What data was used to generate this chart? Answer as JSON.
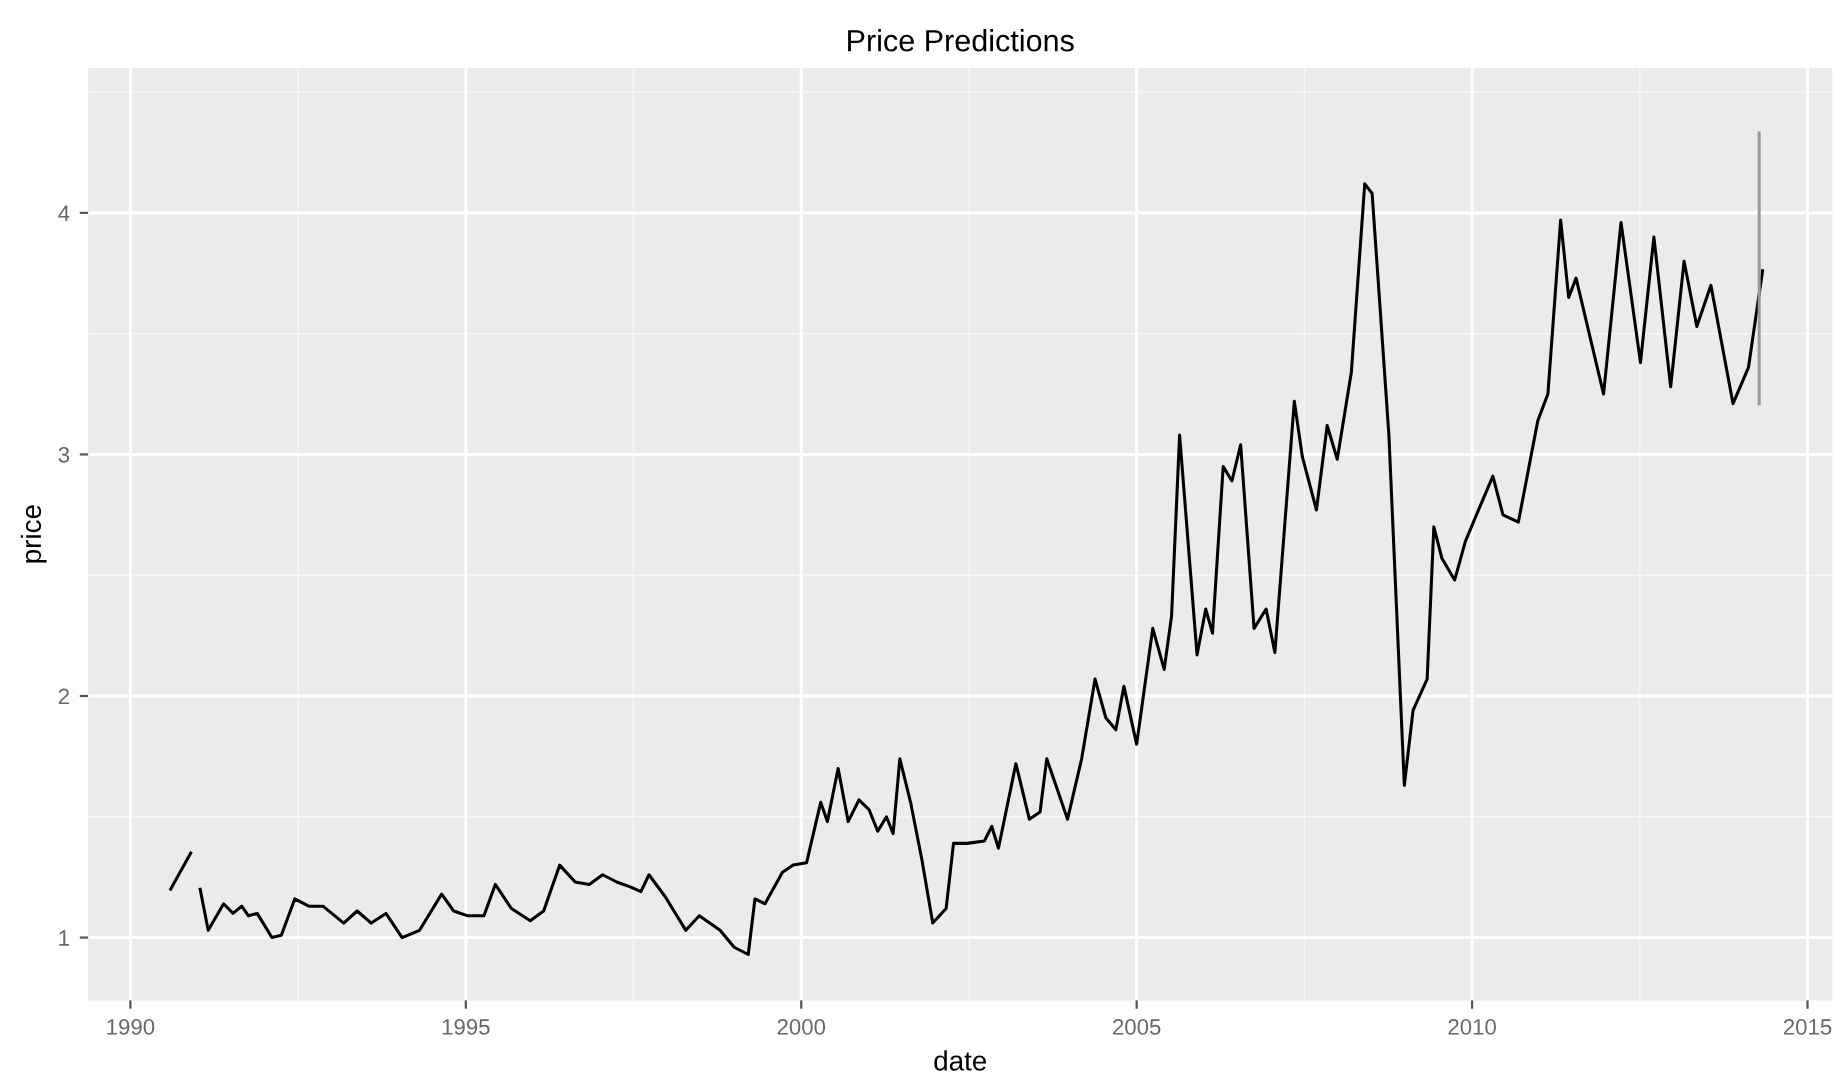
{
  "chart_data": {
    "type": "line",
    "title": "Price Predictions",
    "xlabel": "date",
    "ylabel": "price",
    "xlim": [
      1989.37,
      2015.37
    ],
    "ylim": [
      0.74,
      4.6
    ],
    "xticks": [
      1990,
      1995,
      2000,
      2005,
      2010,
      2015
    ],
    "yticks": [
      1,
      2,
      3,
      4
    ],
    "grid": true,
    "series": [
      {
        "color": "#000000",
        "x": [
          1990.6,
          1990.8,
          1990.9,
          1991.0,
          1991.04,
          1991.16,
          1991.39,
          1991.53,
          1991.66,
          1991.76,
          1991.89,
          1992.11,
          1992.25,
          1992.45,
          1992.66,
          1992.87,
          1993.18,
          1993.38,
          1993.59,
          1993.81,
          1994.05,
          1994.31,
          1994.64,
          1994.82,
          1995.03,
          1995.27,
          1995.44,
          1995.68,
          1995.96,
          1996.16,
          1996.4,
          1996.63,
          1996.84,
          1997.04,
          1997.25,
          1997.45,
          1997.61,
          1997.73,
          1997.97,
          1998.28,
          1998.48,
          1998.79,
          1999.0,
          1999.21,
          1999.31,
          1999.46,
          1999.72,
          1999.88,
          2000.08,
          2000.29,
          2000.39,
          2000.55,
          2000.7,
          2000.86,
          2001.01,
          2001.14,
          2001.27,
          2001.37,
          2001.47,
          2001.63,
          2001.8,
          2001.96,
          2002.16,
          2002.27,
          2002.47,
          2002.73,
          2002.84,
          2002.94,
          2003.2,
          2003.4,
          2003.56,
          2003.66,
          2003.97,
          2004.18,
          2004.38,
          2004.54,
          2004.69,
          2004.81,
          2005.0,
          2005.24,
          2005.41,
          2005.52,
          2005.64,
          2005.72,
          2005.9,
          2006.03,
          2006.13,
          2006.29,
          2006.42,
          2006.55,
          2006.75,
          2006.93,
          2007.06,
          2007.35,
          2007.47,
          2007.68,
          2007.84,
          2007.99,
          2008.2,
          2008.4,
          2008.51,
          2008.61,
          2008.76,
          2008.99,
          2009.12,
          2009.33,
          2009.43,
          2009.55,
          2009.74,
          2009.9,
          2010.05,
          2010.31,
          2010.46,
          2010.69,
          2010.98,
          2011.13,
          2011.32,
          2011.44,
          2011.55,
          2011.96,
          2012.22,
          2012.51,
          2012.71,
          2012.96,
          2013.16,
          2013.35,
          2013.56,
          2013.89,
          2014.12,
          2014.33
        ],
        "values": [
          1.2,
          1.3,
          1.35,
          null,
          1.2,
          1.03,
          1.14,
          1.1,
          1.13,
          1.09,
          1.1,
          1.0,
          1.01,
          1.16,
          1.13,
          1.13,
          1.06,
          1.11,
          1.06,
          1.1,
          1.0,
          1.03,
          1.18,
          1.11,
          1.09,
          1.09,
          1.22,
          1.12,
          1.07,
          1.11,
          1.3,
          1.23,
          1.22,
          1.26,
          1.23,
          1.21,
          1.19,
          1.26,
          1.17,
          1.03,
          1.09,
          1.03,
          0.96,
          0.93,
          1.16,
          1.14,
          1.27,
          1.3,
          1.31,
          1.56,
          1.48,
          1.7,
          1.48,
          1.57,
          1.53,
          1.44,
          1.5,
          1.43,
          1.74,
          1.56,
          1.32,
          1.06,
          1.12,
          1.39,
          1.39,
          1.4,
          1.46,
          1.37,
          1.72,
          1.49,
          1.52,
          1.74,
          1.49,
          1.74,
          2.07,
          1.91,
          1.86,
          2.04,
          1.8,
          2.28,
          2.11,
          2.33,
          3.08,
          2.8,
          2.17,
          2.36,
          2.26,
          2.95,
          2.89,
          3.04,
          2.28,
          2.36,
          2.18,
          3.22,
          2.99,
          2.77,
          3.12,
          2.98,
          3.34,
          4.12,
          4.08,
          3.68,
          3.08,
          1.63,
          1.94,
          2.07,
          2.7,
          2.57,
          2.48,
          2.64,
          2.74,
          2.91,
          2.75,
          2.72,
          3.14,
          3.25,
          3.97,
          3.65,
          3.73,
          3.25,
          3.96,
          3.38,
          3.9,
          3.28,
          3.8,
          3.53,
          3.7,
          3.21,
          3.36,
          3.76
        ]
      },
      {
        "color": "#999999",
        "x": [
          2014.28,
          2014.28
        ],
        "values": [
          3.21,
          4.33
        ]
      }
    ]
  }
}
